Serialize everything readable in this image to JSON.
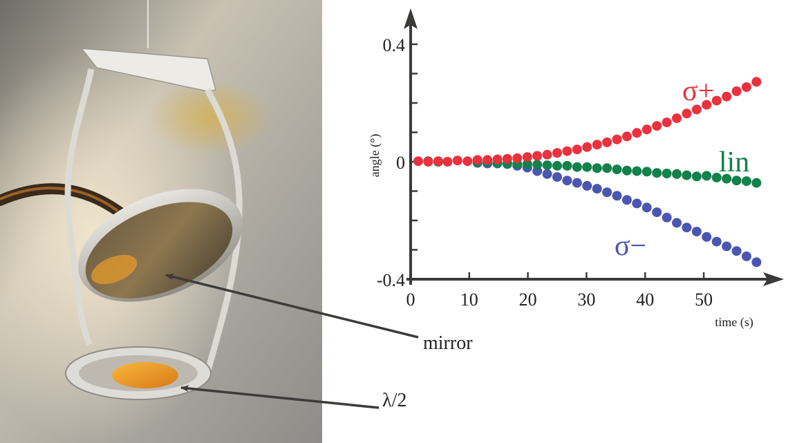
{
  "figure": {
    "photo_labels": {
      "mirror": "mirror",
      "waveplate": "λ/2"
    }
  },
  "chart_data": {
    "type": "scatter",
    "xlabel": "time (s)",
    "ylabel": "angle (°)",
    "xlim": [
      0,
      60
    ],
    "ylim": [
      -0.4,
      0.4
    ],
    "x_ticks": [
      0,
      10,
      20,
      30,
      40,
      50
    ],
    "y_tick_labels": [
      {
        "value": 0.4,
        "label": "0.4"
      },
      {
        "value": 0,
        "label": "0"
      },
      {
        "value": -0.4,
        "label": "-0.4"
      }
    ],
    "y_minor_ticks": [
      -0.3,
      -0.2,
      -0.1,
      0.1,
      0.2,
      0.3
    ],
    "series": [
      {
        "name": "σ+",
        "color": "#e8323e",
        "x": [
          1.3,
          3.0,
          4.7,
          6.3,
          8.0,
          9.7,
          11.4,
          13.1,
          14.8,
          16.5,
          18.2,
          19.9,
          21.6,
          23.3,
          25.0,
          26.7,
          28.4,
          30.1,
          31.8,
          33.5,
          35.2,
          36.9,
          38.6,
          40.3,
          42.0,
          43.7,
          45.4,
          47.1,
          48.8,
          50.5,
          52.2,
          53.9,
          55.6,
          57.3,
          59.0
        ],
        "values": [
          0.002,
          0.0,
          0.002,
          0.0,
          0.004,
          0.002,
          0.006,
          0.006,
          0.008,
          0.01,
          0.012,
          0.016,
          0.02,
          0.024,
          0.03,
          0.036,
          0.042,
          0.05,
          0.058,
          0.066,
          0.076,
          0.086,
          0.098,
          0.11,
          0.122,
          0.134,
          0.148,
          0.164,
          0.178,
          0.194,
          0.208,
          0.222,
          0.24,
          0.254,
          0.272
        ]
      },
      {
        "name": "lin",
        "color": "#12814a",
        "x": [
          3.0,
          4.7,
          11.4,
          13.1,
          14.8,
          16.5,
          18.2,
          19.9,
          21.6,
          23.3,
          25.0,
          26.7,
          28.4,
          30.1,
          31.8,
          33.5,
          35.2,
          36.9,
          38.6,
          40.3,
          42.0,
          43.7,
          45.4,
          47.1,
          48.8,
          50.5,
          52.2,
          53.9,
          55.6,
          57.3,
          59.0
        ],
        "values": [
          0.002,
          0.0,
          -0.002,
          0.0,
          -0.004,
          -0.006,
          -0.008,
          -0.008,
          -0.01,
          -0.012,
          -0.014,
          -0.014,
          -0.018,
          -0.018,
          -0.022,
          -0.022,
          -0.026,
          -0.03,
          -0.032,
          -0.034,
          -0.038,
          -0.04,
          -0.042,
          -0.046,
          -0.05,
          -0.048,
          -0.054,
          -0.058,
          -0.064,
          -0.066,
          -0.072
        ]
      },
      {
        "name": "σ−",
        "color": "#4a56b0",
        "x": [
          4.7,
          11.4,
          13.1,
          14.8,
          16.5,
          18.2,
          19.9,
          21.6,
          23.3,
          25.0,
          26.7,
          28.4,
          30.1,
          31.8,
          33.5,
          35.2,
          36.9,
          38.6,
          40.3,
          42.0,
          43.7,
          45.4,
          47.1,
          48.8,
          50.5,
          52.2,
          53.9,
          55.6,
          57.3,
          59.0
        ],
        "values": [
          0.0,
          -0.004,
          -0.006,
          -0.006,
          -0.008,
          -0.014,
          -0.02,
          -0.032,
          -0.042,
          -0.052,
          -0.064,
          -0.072,
          -0.082,
          -0.092,
          -0.104,
          -0.116,
          -0.13,
          -0.142,
          -0.156,
          -0.172,
          -0.19,
          -0.208,
          -0.224,
          -0.238,
          -0.256,
          -0.272,
          -0.288,
          -0.304,
          -0.322,
          -0.342
        ]
      }
    ]
  }
}
